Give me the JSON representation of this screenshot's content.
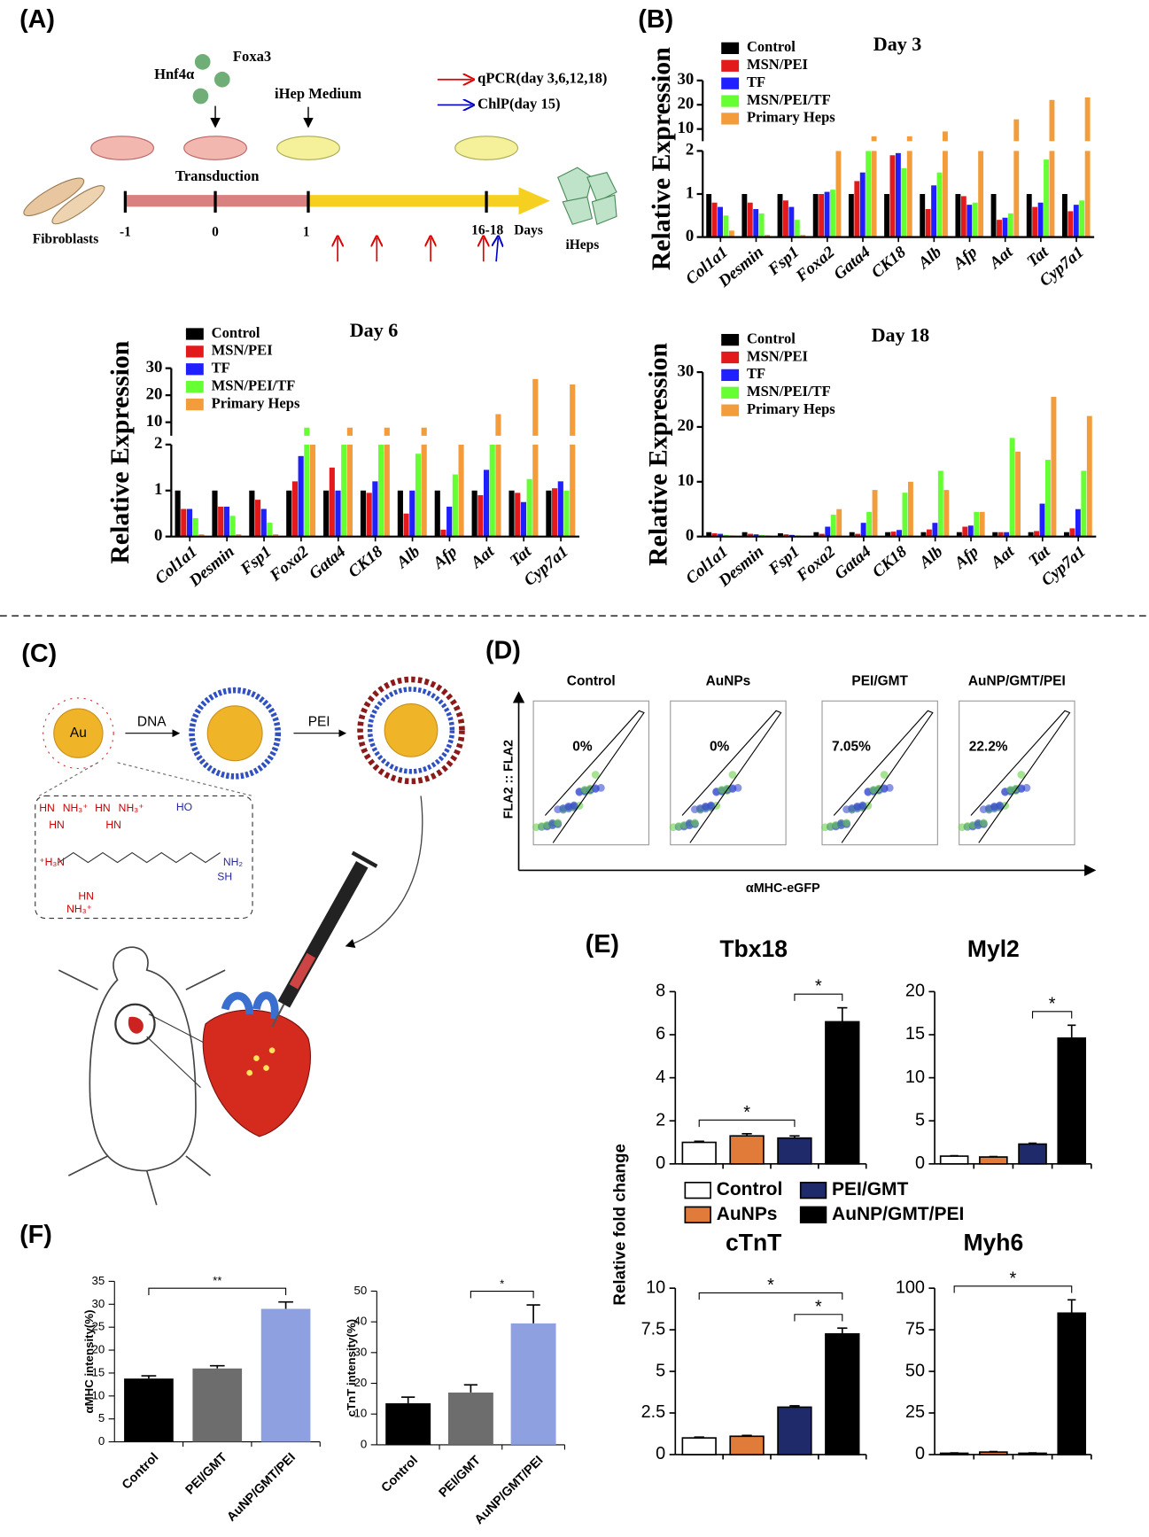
{
  "panel_labels": [
    "(A)",
    "(B)",
    "(C)",
    "(D)",
    "(E)",
    "(F)"
  ],
  "panel_a": {
    "factors": [
      "Hnf4α",
      "Foxa3"
    ],
    "medium": "iHep Medium",
    "legend": [
      "qPCR(day 3,6,12,18)",
      "ChlP(day 15)"
    ],
    "step": "Transduction",
    "start": "Fibroblasts",
    "end": "iHeps",
    "timeline": [
      "-1",
      "0",
      "1",
      "16-18"
    ],
    "unit": "Days"
  },
  "panel_c": {
    "core": "Au",
    "steps": [
      "DNA",
      "PEI"
    ],
    "structure": [
      "HN",
      "NH₃⁺",
      "HN",
      "NH₃⁺",
      "HN",
      "HN",
      "HO",
      "⁺H₃N",
      "NH₂",
      "SH",
      "HN",
      "NH₃⁺"
    ]
  },
  "panel_d": {
    "groups": [
      "Control",
      "AuNPs",
      "PEI/GMT",
      "AuNP/GMT/PEI"
    ],
    "percentages": [
      "0%",
      "0%",
      "7.05%",
      "22.2%"
    ],
    "ylabel": "FLA2 :: FLA2",
    "xlabel": "αMHC-eGFP"
  },
  "chart_data": [
    {
      "type": "bar",
      "title": "Day 3",
      "ylabel": "Relative Expression",
      "categories": [
        "Col1a1",
        "Desmin",
        "Fsp1",
        "Foxa2",
        "Gata4",
        "CK18",
        "Alb",
        "Afp",
        "Aat",
        "Tat",
        "Cyp7a1"
      ],
      "series": [
        {
          "name": "Control",
          "color": "#000000",
          "values": [
            1.0,
            1.0,
            1.0,
            1.0,
            1.0,
            1.0,
            1.0,
            1.0,
            1.0,
            1.0,
            1.0
          ]
        },
        {
          "name": "MSN/PEI",
          "color": "#e31a1c",
          "values": [
            0.8,
            0.8,
            0.85,
            1.0,
            1.3,
            1.9,
            0.65,
            0.95,
            0.4,
            0.7,
            0.6
          ]
        },
        {
          "name": "TF",
          "color": "#1f1fff",
          "values": [
            0.7,
            0.65,
            0.7,
            1.05,
            1.5,
            1.95,
            1.2,
            0.75,
            0.45,
            0.8,
            0.75
          ]
        },
        {
          "name": "MSN/PEI/TF",
          "color": "#66ff33",
          "values": [
            0.5,
            0.55,
            0.4,
            1.1,
            3,
            1.6,
            1.5,
            0.8,
            0.55,
            1.8,
            0.85
          ]
        },
        {
          "name": "Primary Heps",
          "color": "#f39c3c",
          "values": [
            0.15,
            0.05,
            0.05,
            4,
            7,
            7,
            9,
            4,
            14,
            22,
            23
          ]
        }
      ],
      "ylim": [
        0,
        30
      ],
      "ybreak": [
        2,
        5
      ],
      "yticks": [
        0,
        1,
        2,
        10,
        20,
        30
      ]
    },
    {
      "type": "bar",
      "title": "Day 6",
      "ylabel": "Relative Expression",
      "categories": [
        "Col1a1",
        "Desmin",
        "Fsp1",
        "Foxa2",
        "Gata4",
        "CK18",
        "Alb",
        "Afp",
        "Aat",
        "Tat",
        "Cyp7a1"
      ],
      "series": [
        {
          "name": "Control",
          "color": "#000000",
          "values": [
            1.0,
            1.0,
            1.0,
            1.0,
            1.0,
            1.0,
            1.0,
            1.0,
            1.0,
            1.0,
            1.0
          ]
        },
        {
          "name": "MSN/PEI",
          "color": "#e31a1c",
          "values": [
            0.6,
            0.65,
            0.8,
            1.2,
            1.5,
            0.95,
            0.5,
            0.15,
            0.9,
            0.95,
            1.05
          ]
        },
        {
          "name": "TF",
          "color": "#1f1fff",
          "values": [
            0.6,
            0.65,
            0.6,
            1.75,
            1.0,
            1.2,
            1.0,
            0.65,
            1.45,
            0.75,
            1.2
          ]
        },
        {
          "name": "MSN/PEI/TF",
          "color": "#66ff33",
          "values": [
            0.4,
            0.45,
            0.3,
            8,
            4,
            4,
            1.8,
            1.35,
            4,
            1.25,
            1.0
          ]
        },
        {
          "name": "Primary Heps",
          "color": "#f39c3c",
          "values": [
            0.05,
            0.05,
            0.05,
            4,
            8,
            8,
            8,
            4,
            13,
            26,
            24
          ]
        }
      ],
      "ylim": [
        0,
        30
      ],
      "ybreak": [
        2,
        5
      ],
      "yticks": [
        0,
        1,
        2,
        10,
        20,
        30
      ]
    },
    {
      "type": "bar",
      "title": "Day 18",
      "ylabel": "Relative Expression",
      "categories": [
        "Col1a1",
        "Desmin",
        "Fsp1",
        "Foxa2",
        "Gata4",
        "CK18",
        "Alb",
        "Afp",
        "Aat",
        "Tat",
        "Cyp7a1"
      ],
      "series": [
        {
          "name": "Control",
          "color": "#000000",
          "values": [
            0.8,
            0.8,
            0.6,
            0.8,
            0.8,
            0.8,
            0.8,
            0.8,
            0.8,
            0.8,
            0.8
          ]
        },
        {
          "name": "MSN/PEI",
          "color": "#e31a1c",
          "values": [
            0.6,
            0.5,
            0.4,
            0.5,
            0.5,
            0.9,
            1.3,
            1.8,
            0.8,
            1.0,
            1.5
          ]
        },
        {
          "name": "TF",
          "color": "#1f1fff",
          "values": [
            0.5,
            0.4,
            0.3,
            1.8,
            2.5,
            1.2,
            2.5,
            2.0,
            0.8,
            6,
            5
          ]
        },
        {
          "name": "MSN/PEI/TF",
          "color": "#66ff33",
          "values": [
            0.3,
            0.3,
            0.2,
            4,
            4.5,
            8,
            12,
            4.5,
            18,
            14,
            12
          ]
        },
        {
          "name": "Primary Heps",
          "color": "#f39c3c",
          "values": [
            0.2,
            0.2,
            0.1,
            5,
            8.5,
            10,
            8.5,
            4.5,
            15.5,
            25.5,
            22
          ]
        }
      ],
      "ylim": [
        0,
        30
      ],
      "yticks": [
        0,
        10,
        20,
        30
      ]
    },
    {
      "type": "bar",
      "ylabel": "Relative fold change",
      "categories": [
        "Control",
        "AuNPs",
        "PEI/GMT",
        "AuNP/GMT/PEI"
      ],
      "colors": [
        "#ffffff",
        "#e07b39",
        "#1f2a6b",
        "#000000"
      ],
      "subplots": [
        {
          "title": "Tbx18",
          "values": [
            1.0,
            1.3,
            1.2,
            6.6
          ],
          "errors": [
            0.05,
            0.1,
            0.1,
            0.65
          ],
          "ylim": [
            0,
            8
          ],
          "yticks": [
            0,
            2,
            4,
            6,
            8
          ],
          "annotations": [
            {
              "text": "*",
              "between": [
                "Control",
                "PEI/GMT"
              ]
            },
            {
              "text": "*",
              "between": [
                "PEI/GMT",
                "AuNP/GMT/PEI"
              ]
            }
          ]
        },
        {
          "title": "Myl2",
          "values": [
            0.9,
            0.8,
            2.3,
            14.6
          ],
          "errors": [
            0.05,
            0.05,
            0.1,
            1.5
          ],
          "ylim": [
            0,
            20
          ],
          "yticks": [
            0,
            5,
            10,
            15,
            20
          ],
          "annotations": [
            {
              "text": "*",
              "between": [
                "PEI/GMT",
                "AuNP/GMT/PEI"
              ]
            }
          ]
        },
        {
          "title": "cTnT",
          "values": [
            1.0,
            1.1,
            2.85,
            7.25
          ],
          "errors": [
            0.05,
            0.05,
            0.08,
            0.35
          ],
          "ylim": [
            0,
            10
          ],
          "yticks": [
            0,
            2.5,
            5,
            7.5,
            10
          ],
          "annotations": [
            {
              "text": "*",
              "between": [
                "PEI/GMT",
                "AuNP/GMT/PEI"
              ]
            },
            {
              "text": "*",
              "between": [
                "Control",
                "AuNP/GMT/PEI"
              ]
            }
          ]
        },
        {
          "title": "Myh6",
          "values": [
            0.8,
            1.5,
            0.8,
            85
          ],
          "errors": [
            0.2,
            0.3,
            0.2,
            8
          ],
          "ylim": [
            0,
            100
          ],
          "yticks": [
            0,
            25,
            50,
            75,
            100
          ],
          "annotations": [
            {
              "text": "*",
              "between": [
                "Control",
                "AuNP/GMT/PEI"
              ]
            }
          ]
        }
      ]
    },
    {
      "type": "bar",
      "ylabel": "αMHC intensity(%)",
      "categories": [
        "Control",
        "PEI/GMT",
        "AuNP/GMT/PEI"
      ],
      "colors": [
        "#000000",
        "#6d6d6d",
        "#8fa0e0"
      ],
      "values": [
        13.8,
        16.0,
        29.0
      ],
      "errors": [
        0.6,
        0.6,
        1.5
      ],
      "ylim": [
        0,
        35
      ],
      "yticks": [
        0,
        5,
        10,
        15,
        20,
        25,
        30,
        35
      ],
      "annotations": [
        {
          "text": "**",
          "between": [
            "Control",
            "AuNP/GMT/PEI"
          ]
        }
      ]
    },
    {
      "type": "bar",
      "ylabel": "cTnT intensity(%)",
      "categories": [
        "Control",
        "PEI/GMT",
        "AuNP/GMT/PEI"
      ],
      "colors": [
        "#000000",
        "#6d6d6d",
        "#8fa0e0"
      ],
      "values": [
        13.5,
        17,
        39.5
      ],
      "errors": [
        2,
        2.5,
        6
      ],
      "ylim": [
        0,
        50
      ],
      "yticks": [
        0,
        10,
        20,
        30,
        40,
        50
      ],
      "annotations": [
        {
          "text": "*",
          "between": [
            "PEI/GMT",
            "AuNP/GMT/PEI"
          ]
        }
      ]
    }
  ]
}
